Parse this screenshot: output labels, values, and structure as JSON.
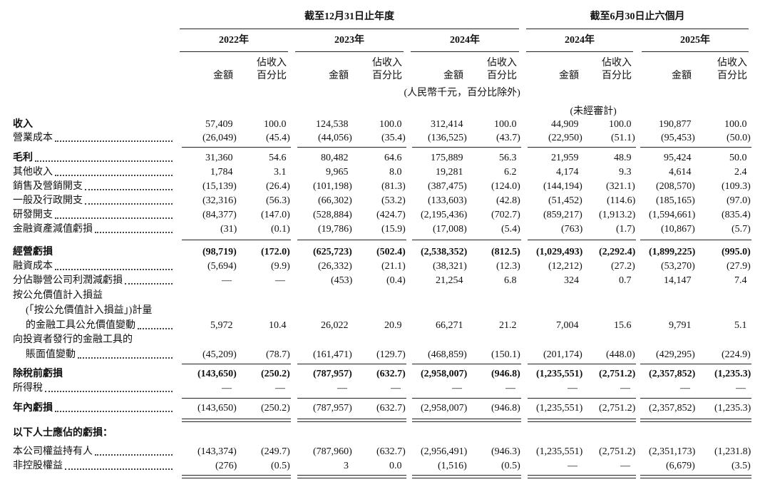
{
  "header": {
    "groups": [
      "截至12月31日止年度",
      "截至6月30日止六個月"
    ],
    "years": [
      "2022年",
      "2023年",
      "2024年",
      "2024年",
      "2025年"
    ],
    "subheaders": [
      [
        "金額"
      ],
      [
        "佔收入",
        "百分比"
      ],
      [
        "金額"
      ],
      [
        "佔收入",
        "百分比"
      ],
      [
        "金額"
      ],
      [
        "佔收入",
        "百分比"
      ],
      [
        "金額"
      ],
      [
        "佔收入",
        "百分比"
      ],
      [
        "金額"
      ],
      [
        "佔收入",
        "百分比"
      ]
    ],
    "currency_note": "(人民幣千元，百分比除外)",
    "unaudited_note": "(未經審計)"
  },
  "table": {
    "rows": [
      {
        "label_lines": [
          "收入"
        ],
        "values": [
          "57,409",
          "100.0",
          "124,538",
          "100.0",
          "312,414",
          "100.0",
          "44,909",
          "100.0",
          "190,877",
          "100.0"
        ]
      },
      {
        "label_lines": [
          "營業成本"
        ],
        "values": [
          "(26,049)",
          "(45.4)",
          "(44,056)",
          "(35.4)",
          "(136,525)",
          "(43.7)",
          "(22,950)",
          "(51.1)",
          "(95,453)",
          "(50.0)"
        ]
      },
      {
        "label_lines": [
          "毛利"
        ],
        "values": [
          "31,360",
          "54.6",
          "80,482",
          "64.6",
          "175,889",
          "56.3",
          "21,959",
          "48.9",
          "95,424",
          "50.0"
        ]
      },
      {
        "label_lines": [
          "其他收入"
        ],
        "values": [
          "1,784",
          "3.1",
          "9,965",
          "8.0",
          "19,281",
          "6.2",
          "4,174",
          "9.3",
          "4,614",
          "2.4"
        ]
      },
      {
        "label_lines": [
          "銷售及營銷開支"
        ],
        "values": [
          "(15,139)",
          "(26.4)",
          "(101,198)",
          "(81.3)",
          "(387,475)",
          "(124.0)",
          "(144,194)",
          "(321.1)",
          "(208,570)",
          "(109.3)"
        ]
      },
      {
        "label_lines": [
          "一般及行政開支"
        ],
        "values": [
          "(32,316)",
          "(56.3)",
          "(66,302)",
          "(53.2)",
          "(133,603)",
          "(42.8)",
          "(51,452)",
          "(114.6)",
          "(185,165)",
          "(97.0)"
        ]
      },
      {
        "label_lines": [
          "研發開支"
        ],
        "values": [
          "(84,377)",
          "(147.0)",
          "(528,884)",
          "(424.7)",
          "(2,195,436)",
          "(702.7)",
          "(859,217)",
          "(1,913.2)",
          "(1,594,661)",
          "(835.4)"
        ]
      },
      {
        "label_lines": [
          "金融資產減值虧損"
        ],
        "values": [
          "(31)",
          "(0.1)",
          "(19,786)",
          "(15.9)",
          "(17,008)",
          "(5.4)",
          "(763)",
          "(1.7)",
          "(10,867)",
          "(5.7)"
        ]
      },
      {
        "label_lines": [
          "經營虧損"
        ],
        "values": [
          "(98,719)",
          "(172.0)",
          "(625,723)",
          "(502.4)",
          "(2,538,352)",
          "(812.5)",
          "(1,029,493)",
          "(2,292.4)",
          "(1,899,225)",
          "(995.0)"
        ]
      },
      {
        "label_lines": [
          "融資成本"
        ],
        "values": [
          "(5,694)",
          "(9.9)",
          "(26,332)",
          "(21.1)",
          "(38,321)",
          "(12.3)",
          "(12,212)",
          "(27.2)",
          "(53,270)",
          "(27.9)"
        ]
      },
      {
        "label_lines": [
          "分佔聯營公司利潤減虧損"
        ],
        "values": [
          "—",
          "—",
          "(453)",
          "(0.4)",
          "21,254",
          "6.8",
          "324",
          "0.7",
          "14,147",
          "7.4"
        ]
      },
      {
        "label_lines": [
          "按公允價值計入損益",
          "(「按公允價值計入損益」)計量",
          "的金融工具公允價值變動"
        ],
        "values": [
          "5,972",
          "10.4",
          "26,022",
          "20.9",
          "66,271",
          "21.2",
          "7,004",
          "15.6",
          "9,791",
          "5.1"
        ]
      },
      {
        "label_lines": [
          "向投資者發行的金融工具的",
          "賬面值變動"
        ],
        "values": [
          "(45,209)",
          "(78.7)",
          "(161,471)",
          "(129.7)",
          "(468,859)",
          "(150.1)",
          "(201,174)",
          "(448.0)",
          "(429,295)",
          "(224.9)"
        ]
      },
      {
        "label_lines": [
          "除稅前虧損"
        ],
        "values": [
          "(143,650)",
          "(250.2)",
          "(787,957)",
          "(632.7)",
          "(2,958,007)",
          "(946.8)",
          "(1,235,551)",
          "(2,751.2)",
          "(2,357,852)",
          "(1,235.3)"
        ]
      },
      {
        "label_lines": [
          "所得稅"
        ],
        "values": [
          "—",
          "—",
          "—",
          "—",
          "—",
          "—",
          "—",
          "—",
          "—",
          "—"
        ]
      },
      {
        "label_lines": [
          "年內虧損"
        ],
        "values": [
          "(143,650)",
          "(250.2)",
          "(787,957)",
          "(632.7)",
          "(2,958,007)",
          "(946.8)",
          "(1,235,551)",
          "(2,751.2)",
          "(2,357,852)",
          "(1,235.3)"
        ]
      },
      {
        "label_lines": [
          "以下人士應佔的虧損："
        ]
      },
      {
        "label_lines": [
          "本公司權益持有人"
        ],
        "values": [
          "(143,374)",
          "(249.7)",
          "(787,960)",
          "(632.7)",
          "(2,956,491)",
          "(946.3)",
          "(1,235,551)",
          "(2,751.2)",
          "(2,351,173)",
          "(1,231.8)"
        ]
      },
      {
        "label_lines": [
          "非控股權益"
        ],
        "values": [
          "(276)",
          "(0.5)",
          "3",
          "0.0",
          "(1,516)",
          "(0.5)",
          "—",
          "—",
          "(6,679)",
          "(3.5)"
        ]
      }
    ]
  }
}
